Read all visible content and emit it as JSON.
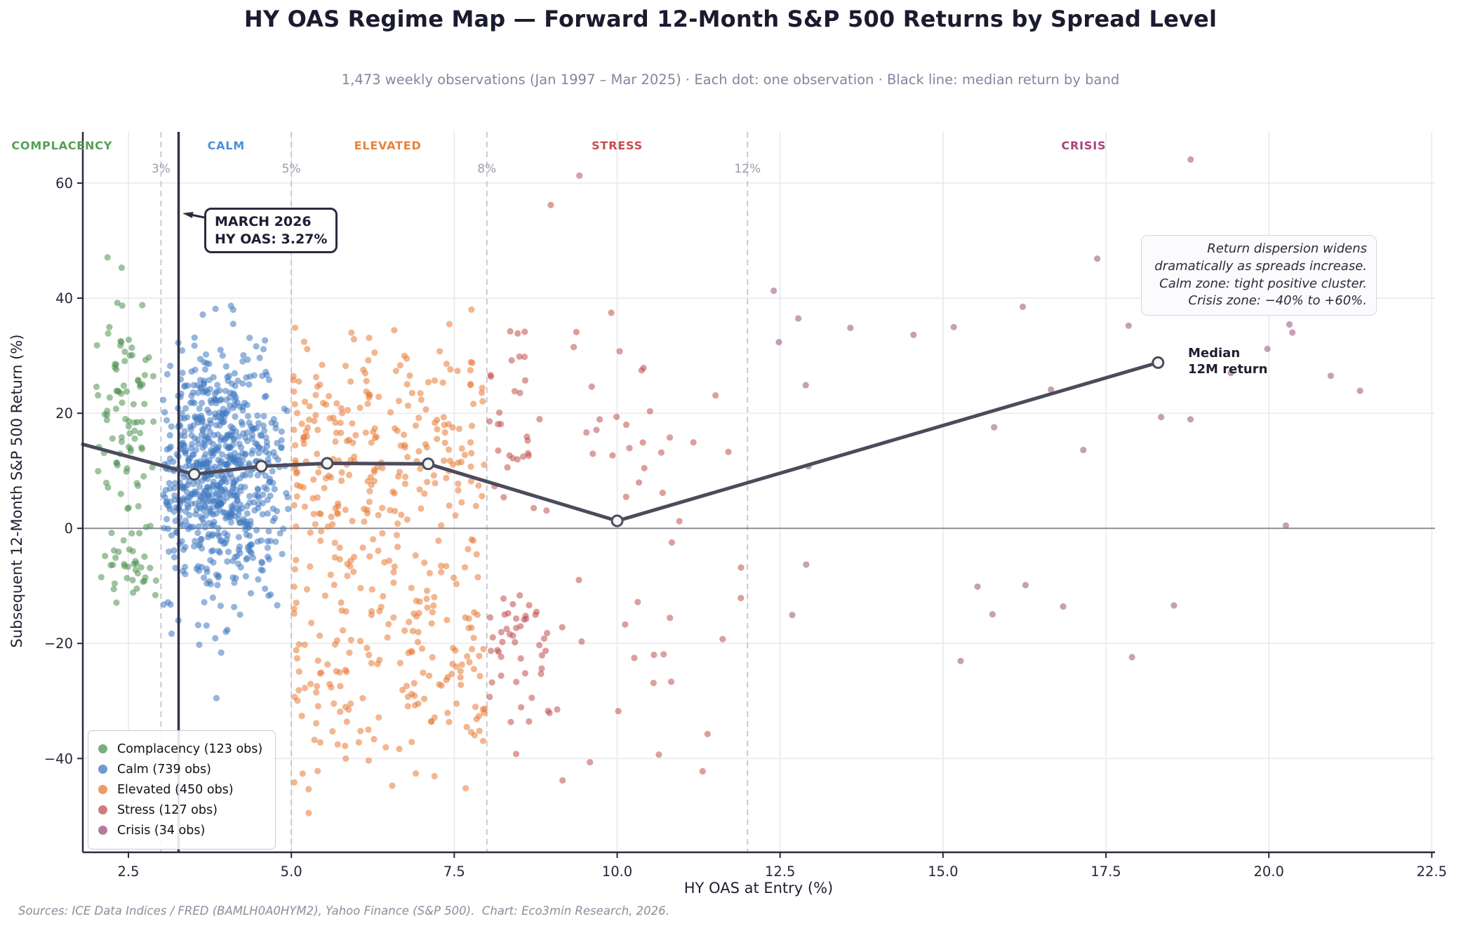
{
  "header": {
    "title": "HY OAS Regime Map — Forward 12-Month S&P 500 Returns by Spread Level",
    "subtitle": "1,473 weekly observations (Jan 1997 – Mar 2025) · Each dot: one observation · Black line: median return by band"
  },
  "footer": {
    "text": "Sources: ICE Data Indices / FRED (BAMLH0A0HYM2), Yahoo Finance (S&P 500).  Chart: Eco3min Research, 2026."
  },
  "annotations": {
    "march": {
      "line1": "MARCH 2026",
      "line2": "HY OAS: 3.27%"
    },
    "dispersion": {
      "lines": [
        "Return dispersion widens",
        "dramatically as spreads increase.",
        "Calm zone: tight positive cluster.",
        "Crisis zone: −40% to +60%."
      ]
    },
    "median_label": {
      "line1": "Median",
      "line2": "12M return"
    }
  },
  "legend": {
    "items": [
      {
        "label": "Complacency (123 obs)",
        "color": "#4e9251"
      },
      {
        "label": "Calm (739 obs)",
        "color": "#3f78c1"
      },
      {
        "label": "Elevated (450 obs)",
        "color": "#e87a35"
      },
      {
        "label": "Stress (127 obs)",
        "color": "#c14f4f"
      },
      {
        "label": "Crisis (34 obs)",
        "color": "#9b4f7f"
      }
    ]
  },
  "chart_data": {
    "type": "scatter",
    "title": "HY OAS Regime Map — Forward 12-Month S&P 500 Returns by Spread Level",
    "xlabel": "HY OAS at Entry (%)",
    "ylabel": "Subsequent 12-Month S&P 500 Return (%)",
    "xlim": [
      1.8,
      22.55
    ],
    "ylim": [
      -56.3,
      68.9
    ],
    "x_ticks": [
      {
        "v": 2.5,
        "label": "2.5"
      },
      {
        "v": 5.0,
        "label": "5.0"
      },
      {
        "v": 7.5,
        "label": "7.5"
      },
      {
        "v": 10.0,
        "label": "10.0"
      },
      {
        "v": 12.5,
        "label": "12.5"
      },
      {
        "v": 15.0,
        "label": "15.0"
      },
      {
        "v": 17.5,
        "label": "17.5"
      },
      {
        "v": 20.0,
        "label": "20.0"
      },
      {
        "v": 22.5,
        "label": "22.5"
      }
    ],
    "y_ticks": [
      {
        "v": -40,
        "label": "−40"
      },
      {
        "v": -20,
        "label": "−20"
      },
      {
        "v": 0,
        "label": "0"
      },
      {
        "v": 20,
        "label": "20"
      },
      {
        "v": 40,
        "label": "40"
      },
      {
        "v": 60,
        "label": "60"
      }
    ],
    "grid": true,
    "point_radius": 4.6,
    "point_alpha": 0.55,
    "seed": 1997,
    "thresholds": [
      {
        "label": "3%",
        "x": 3
      },
      {
        "label": "5%",
        "x": 5
      },
      {
        "label": "8%",
        "x": 8
      },
      {
        "label": "12%",
        "x": 12
      }
    ],
    "vline": {
      "x": 3.27,
      "color": "#33334a"
    },
    "bands": [
      {
        "name": "complacency",
        "zone_label": "COMPLACENCY",
        "zone_label_color": "#55a055",
        "zone_label_x": 1.48,
        "count": 123,
        "color": "#4e9251",
        "x_range": [
          1.9,
          3.0
        ],
        "y_range_approx": [
          -13,
          52
        ],
        "gen": {
          "x": {
            "type": "normal",
            "mean": 2.45,
            "sd": 0.27,
            "min": 1.88,
            "max": 2.99
          },
          "components": [
            {
              "w": 0.78,
              "mean": 18,
              "sd": 13.5,
              "clamp": [
                -8,
                51
              ]
            },
            {
              "w": 0.22,
              "mean": -7,
              "sd": 4.5,
              "clamp": [
                -13.5,
                1
              ]
            }
          ]
        }
      },
      {
        "name": "calm",
        "zone_label": "CALM",
        "zone_label_color": "#4a90d9",
        "zone_label_x": 4.0,
        "count": 739,
        "color": "#3f78c1",
        "x_range": [
          3.0,
          5.0
        ],
        "y_range_approx": [
          -30,
          41
        ],
        "gen": {
          "x": {
            "type": "normal",
            "mean": 3.85,
            "sd": 0.5,
            "min": 3.02,
            "max": 4.97
          },
          "components": [
            {
              "w": 1.0,
              "mean": 9,
              "sd": 11,
              "clamp": [
                -22,
                41
              ]
            }
          ]
        }
      },
      {
        "name": "elevated",
        "zone_label": "ELEVATED",
        "zone_label_color": "#e8823c",
        "zone_label_x": 6.48,
        "count": 450,
        "color": "#e87a35",
        "x_range": [
          5.0,
          8.0
        ],
        "y_range_approx": [
          -51,
          48
        ],
        "gen": {
          "x": {
            "type": "pow",
            "min": 5.03,
            "max": 7.97,
            "pow": 1.2
          },
          "components": [
            {
              "w": 0.61,
              "mean": 13,
              "sd": 10,
              "clamp": [
                -8,
                47
              ]
            },
            {
              "w": 0.39,
              "mean": -22,
              "sd": 12.5,
              "clamp": [
                -50.8,
                -2
              ]
            }
          ]
        }
      },
      {
        "name": "stress",
        "zone_label": "STRESS",
        "zone_label_color": "#c74d4d",
        "zone_label_x": 10.0,
        "count": 127,
        "color": "#c14f4f",
        "x_range": [
          8.0,
          12.0
        ],
        "y_range_approx": [
          -46,
          62
        ],
        "gen": {
          "x": {
            "type": "pow",
            "min": 8.04,
            "max": 11.9,
            "pow": 1.7
          },
          "components": [
            {
              "w": 0.46,
              "mean": 17,
              "sd": 11,
              "clamp": [
                -4,
                44
              ]
            },
            {
              "w": 0.29,
              "mean": -26,
              "sd": 10,
              "clamp": [
                -46,
                -6
              ]
            },
            {
              "w": 0.25,
              "mean": -18.5,
              "sd": 4.5,
              "clamp": [
                -30,
                -11
              ],
              "x": {
                "type": "normal",
                "mean": 8.45,
                "sd": 0.28,
                "min": 8.05,
                "max": 9.3
              }
            }
          ]
        }
      },
      {
        "name": "crisis",
        "zone_label": "CRISIS",
        "zone_label_color": "#a8447e",
        "zone_label_x": 17.16,
        "count": 34,
        "color": "#9b4f7f",
        "x_range": [
          12.0,
          21.5
        ],
        "y_range_approx": [
          -24,
          64
        ],
        "gen": {
          "x": {
            "type": "pow",
            "min": 12.25,
            "max": 21.3,
            "pow": 1.15
          },
          "components": [
            {
              "w": 0.85,
              "mean": 27,
              "sd": 11,
              "clamp": [
                -8,
                50
              ]
            },
            {
              "w": 0.15,
              "mean": -14,
              "sd": 8,
              "clamp": [
                -24,
                -5
              ]
            }
          ]
        }
      }
    ],
    "extra_points": [
      {
        "band": "calm",
        "x": 3.85,
        "y": -29.5
      },
      {
        "band": "stress",
        "x": 9.42,
        "y": 61.3
      },
      {
        "band": "stress",
        "x": 8.98,
        "y": 56.2
      },
      {
        "band": "stress",
        "x": 11.9,
        "y": -6.8
      },
      {
        "band": "crisis",
        "x": 18.8,
        "y": 64.1
      },
      {
        "band": "crisis",
        "x": 21.4,
        "y": 23.9
      },
      {
        "band": "crisis",
        "x": 20.95,
        "y": 26.5
      },
      {
        "band": "crisis",
        "x": 12.9,
        "y": -6.3
      },
      {
        "band": "crisis",
        "x": 17.9,
        "y": -22.4
      }
    ],
    "median_line": {
      "color": "#4b4b5c",
      "points": [
        [
          1.8,
          14.6
        ],
        [
          3.51,
          9.4
        ],
        [
          4.54,
          10.8
        ],
        [
          5.55,
          11.3
        ],
        [
          7.1,
          11.2
        ],
        [
          10.0,
          1.3
        ],
        [
          18.3,
          28.8
        ]
      ],
      "marker_from_index": 1
    },
    "zero_line_y": 0
  }
}
